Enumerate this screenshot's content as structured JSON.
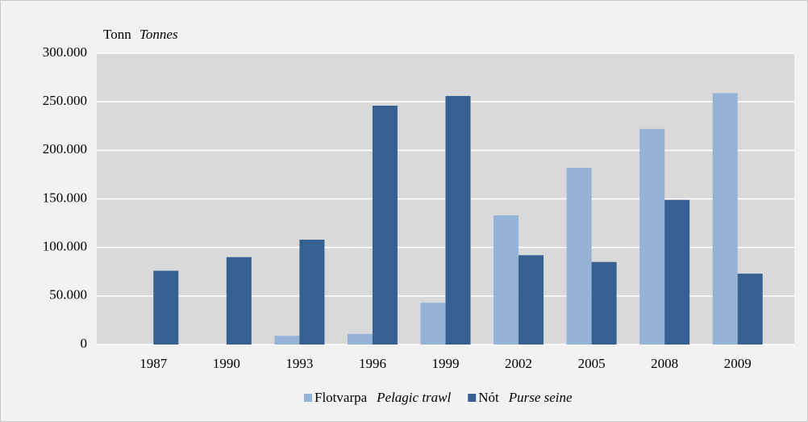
{
  "chart_data": {
    "type": "bar",
    "y_label": [
      "Tonn",
      "Tonnes"
    ],
    "categories": [
      "1987",
      "1990",
      "1993",
      "1996",
      "1999",
      "2002",
      "2005",
      "2008",
      "2009"
    ],
    "series": [
      {
        "name": [
          "Flotvarpa",
          "Pelagic trawl"
        ],
        "color": "#95b3d7",
        "values": [
          0,
          0,
          9000,
          11000,
          43000,
          133000,
          182000,
          222000,
          259000
        ]
      },
      {
        "name": [
          "Nót",
          "Purse seine"
        ],
        "color": "#366092",
        "values": [
          76000,
          90000,
          108000,
          246000,
          256000,
          92000,
          85000,
          149000,
          73000
        ]
      }
    ],
    "ylim": [
      0,
      300000
    ],
    "yticks": [
      0,
      {
        "value": 50000,
        "label": "50.000"
      },
      {
        "value": 100000,
        "label": "100.000"
      },
      {
        "value": 150000,
        "label": "150.000"
      },
      {
        "value": 200000,
        "label": "200.000"
      },
      {
        "value": 250000,
        "label": "250.000"
      },
      {
        "value": 300000,
        "label": "300.000"
      }
    ],
    "grid": true,
    "legend": "bottom"
  }
}
